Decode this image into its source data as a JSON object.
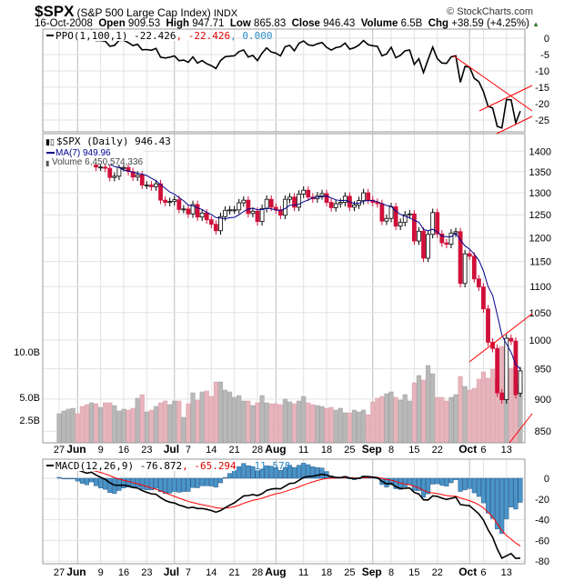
{
  "header": {
    "symbol": "$SPX",
    "name": "(S&P 500 Large Cap Index)",
    "exchange": "INDX",
    "copyright": "© StockCharts.com",
    "date": "16-Oct-2008",
    "open_label": "Open",
    "open": "909.53",
    "high_label": "High",
    "high": "947.71",
    "low_label": "Low",
    "low": "865.83",
    "close_label": "Close",
    "close": "946.43",
    "volume_label": "Volume",
    "volume": "6.5B",
    "chg_label": "Chg",
    "chg": "+38.59 (+4.25%)",
    "chg_icon": "up-triangle-icon"
  },
  "colors": {
    "up": "#000000",
    "down": "#d0103a",
    "ma": "#00008b",
    "volume_up": "#b8b8b8",
    "volume_down": "#e8b4bc",
    "macd_hist": "#4a94c8",
    "signal": "#ff0000",
    "trendline": "#ff0000"
  },
  "chart_data": [
    {
      "type": "line",
      "title": "PPO(1,100,1)",
      "legend": {
        "name": "PPO(1,100,1)",
        "v1": "-22.426",
        "v2": ", -22.426",
        "v3": ", 0.000"
      },
      "yticks": [
        "0",
        "-5",
        "-10",
        "-15",
        "-20",
        "-25"
      ],
      "ylim": [
        -28,
        2
      ]
    },
    {
      "type": "candlestick",
      "title": "$SPX (Daily) 946.43",
      "legend": {
        "price": "$SPX (Daily) 946.43",
        "ma": "MA(7) 949.96",
        "volume": "Volume 6,450,574,336"
      },
      "yticks": [
        "1400",
        "1350",
        "1300",
        "1250",
        "1200",
        "1150",
        "1100",
        "1050",
        "1000",
        "950",
        "900",
        "850"
      ],
      "volume_ticks": [
        "10.0B",
        "5.0B",
        "2.5B"
      ],
      "dates": [
        "05-27",
        "05-28",
        "05-29",
        "05-30",
        "06-02",
        "06-03",
        "06-04",
        "06-05",
        "06-06",
        "06-09",
        "06-10",
        "06-11",
        "06-12",
        "06-13",
        "06-16",
        "06-17",
        "06-18",
        "06-19",
        "06-20",
        "06-23",
        "06-24",
        "06-25",
        "06-26",
        "06-27",
        "06-30",
        "07-01",
        "07-02",
        "07-03",
        "07-07",
        "07-08",
        "07-09",
        "07-10",
        "07-11",
        "07-14",
        "07-15",
        "07-16",
        "07-17",
        "07-18",
        "07-21",
        "07-22",
        "07-23",
        "07-24",
        "07-25",
        "07-28",
        "07-29",
        "07-30",
        "07-31",
        "08-01",
        "08-04",
        "08-05",
        "08-06",
        "08-07",
        "08-08",
        "08-11",
        "08-12",
        "08-13",
        "08-14",
        "08-15",
        "08-18",
        "08-19",
        "08-20",
        "08-21",
        "08-22",
        "08-25",
        "08-26",
        "08-27",
        "08-28",
        "08-29",
        "09-02",
        "09-03",
        "09-04",
        "09-05",
        "09-08",
        "09-09",
        "09-10",
        "09-11",
        "09-12",
        "09-15",
        "09-16",
        "09-17",
        "09-18",
        "09-19",
        "09-22",
        "09-23",
        "09-24",
        "09-25",
        "09-26",
        "09-29",
        "09-30",
        "10-01",
        "10-02",
        "10-03",
        "10-06",
        "10-07",
        "10-08",
        "10-09",
        "10-10",
        "10-13",
        "10-14",
        "10-15",
        "10-16"
      ],
      "close": [
        1385,
        1390,
        1398,
        1400,
        1385,
        1378,
        1377,
        1404,
        1361,
        1361,
        1358,
        1336,
        1339,
        1360,
        1360,
        1350,
        1337,
        1342,
        1318,
        1318,
        1314,
        1321,
        1283,
        1278,
        1280,
        1284,
        1262,
        1263,
        1252,
        1273,
        1245,
        1254,
        1239,
        1229,
        1215,
        1246,
        1260,
        1261,
        1261,
        1277,
        1283,
        1253,
        1258,
        1235,
        1264,
        1285,
        1267,
        1261,
        1249,
        1285,
        1290,
        1267,
        1297,
        1306,
        1290,
        1286,
        1293,
        1298,
        1278,
        1266,
        1275,
        1278,
        1292,
        1267,
        1272,
        1282,
        1300,
        1283,
        1278,
        1275,
        1236,
        1242,
        1268,
        1225,
        1233,
        1250,
        1252,
        1193,
        1214,
        1157,
        1207,
        1255,
        1208,
        1189,
        1186,
        1210,
        1213,
        1106,
        1166,
        1161,
        1115,
        1099,
        1057,
        996,
        985,
        910,
        899,
        1003,
        998,
        907,
        946.43
      ],
      "volume_billions": [
        3.2,
        3.5,
        3.7,
        3.8,
        3.2,
        4.0,
        4.2,
        4.4,
        4.3,
        3.9,
        4.4,
        4.4,
        4.1,
        3.5,
        3.7,
        3.6,
        3.8,
        4.9,
        5.3,
        3.4,
        3.6,
        4.0,
        4.4,
        4.6,
        4.2,
        4.6,
        4.6,
        2.8,
        4.3,
        5.5,
        4.7,
        5.6,
        5.7,
        5.1,
        6.7,
        6.7,
        5.8,
        5.6,
        5.0,
        5.2,
        4.6,
        4.6,
        4.1,
        4.4,
        5.2,
        4.4,
        4.3,
        4.3,
        4.2,
        4.8,
        4.5,
        4.3,
        4.6,
        5.1,
        4.4,
        4.2,
        4.1,
        4.0,
        3.8,
        3.9,
        3.6,
        3.8,
        3.3,
        3.3,
        3.6,
        3.4,
        3.6,
        3.1,
        4.5,
        4.9,
        5.1,
        5.4,
        5.6,
        5.0,
        4.7,
        5.3,
        4.6,
        6.6,
        7.4,
        6.9,
        8.5,
        7.6,
        5.0,
        5.0,
        4.6,
        5.0,
        5.3,
        7.3,
        6.2,
        5.8,
        6.0,
        7.0,
        7.8,
        7.1,
        8.1,
        7.0,
        10.6,
        7.3,
        8.2,
        6.6,
        6.5
      ]
    },
    {
      "type": "line",
      "title": "MACD(12,26,9)",
      "legend": {
        "name": "MACD(12,26,9)",
        "v1": "-76.872",
        "v2": ", -65.294",
        "v3": ", -11.578"
      },
      "yticks": [
        "0",
        "-20",
        "-40",
        "-60",
        "-80"
      ],
      "ylim": [
        -90,
        18
      ]
    }
  ],
  "xaxis": [
    {
      "t": "27",
      "d": "05-27"
    },
    {
      "t": "Jun",
      "d": "06-02",
      "m": 1
    },
    {
      "t": "9",
      "d": "06-09"
    },
    {
      "t": "16",
      "d": "06-16"
    },
    {
      "t": "23",
      "d": "06-23"
    },
    {
      "t": "Jul",
      "d": "07-01",
      "m": 1
    },
    {
      "t": "7",
      "d": "07-07"
    },
    {
      "t": "14",
      "d": "07-14"
    },
    {
      "t": "21",
      "d": "07-21"
    },
    {
      "t": "28",
      "d": "07-28"
    },
    {
      "t": "Aug",
      "d": "08-01",
      "m": 1
    },
    {
      "t": "11",
      "d": "08-11"
    },
    {
      "t": "18",
      "d": "08-18"
    },
    {
      "t": "25",
      "d": "08-25"
    },
    {
      "t": "Sep",
      "d": "09-02",
      "m": 1
    },
    {
      "t": "8",
      "d": "09-08"
    },
    {
      "t": "15",
      "d": "09-15"
    },
    {
      "t": "22",
      "d": "09-22"
    },
    {
      "t": "Oct",
      "d": "10-01",
      "m": 1
    },
    {
      "t": "6",
      "d": "10-06"
    },
    {
      "t": "13",
      "d": "10-13"
    }
  ]
}
